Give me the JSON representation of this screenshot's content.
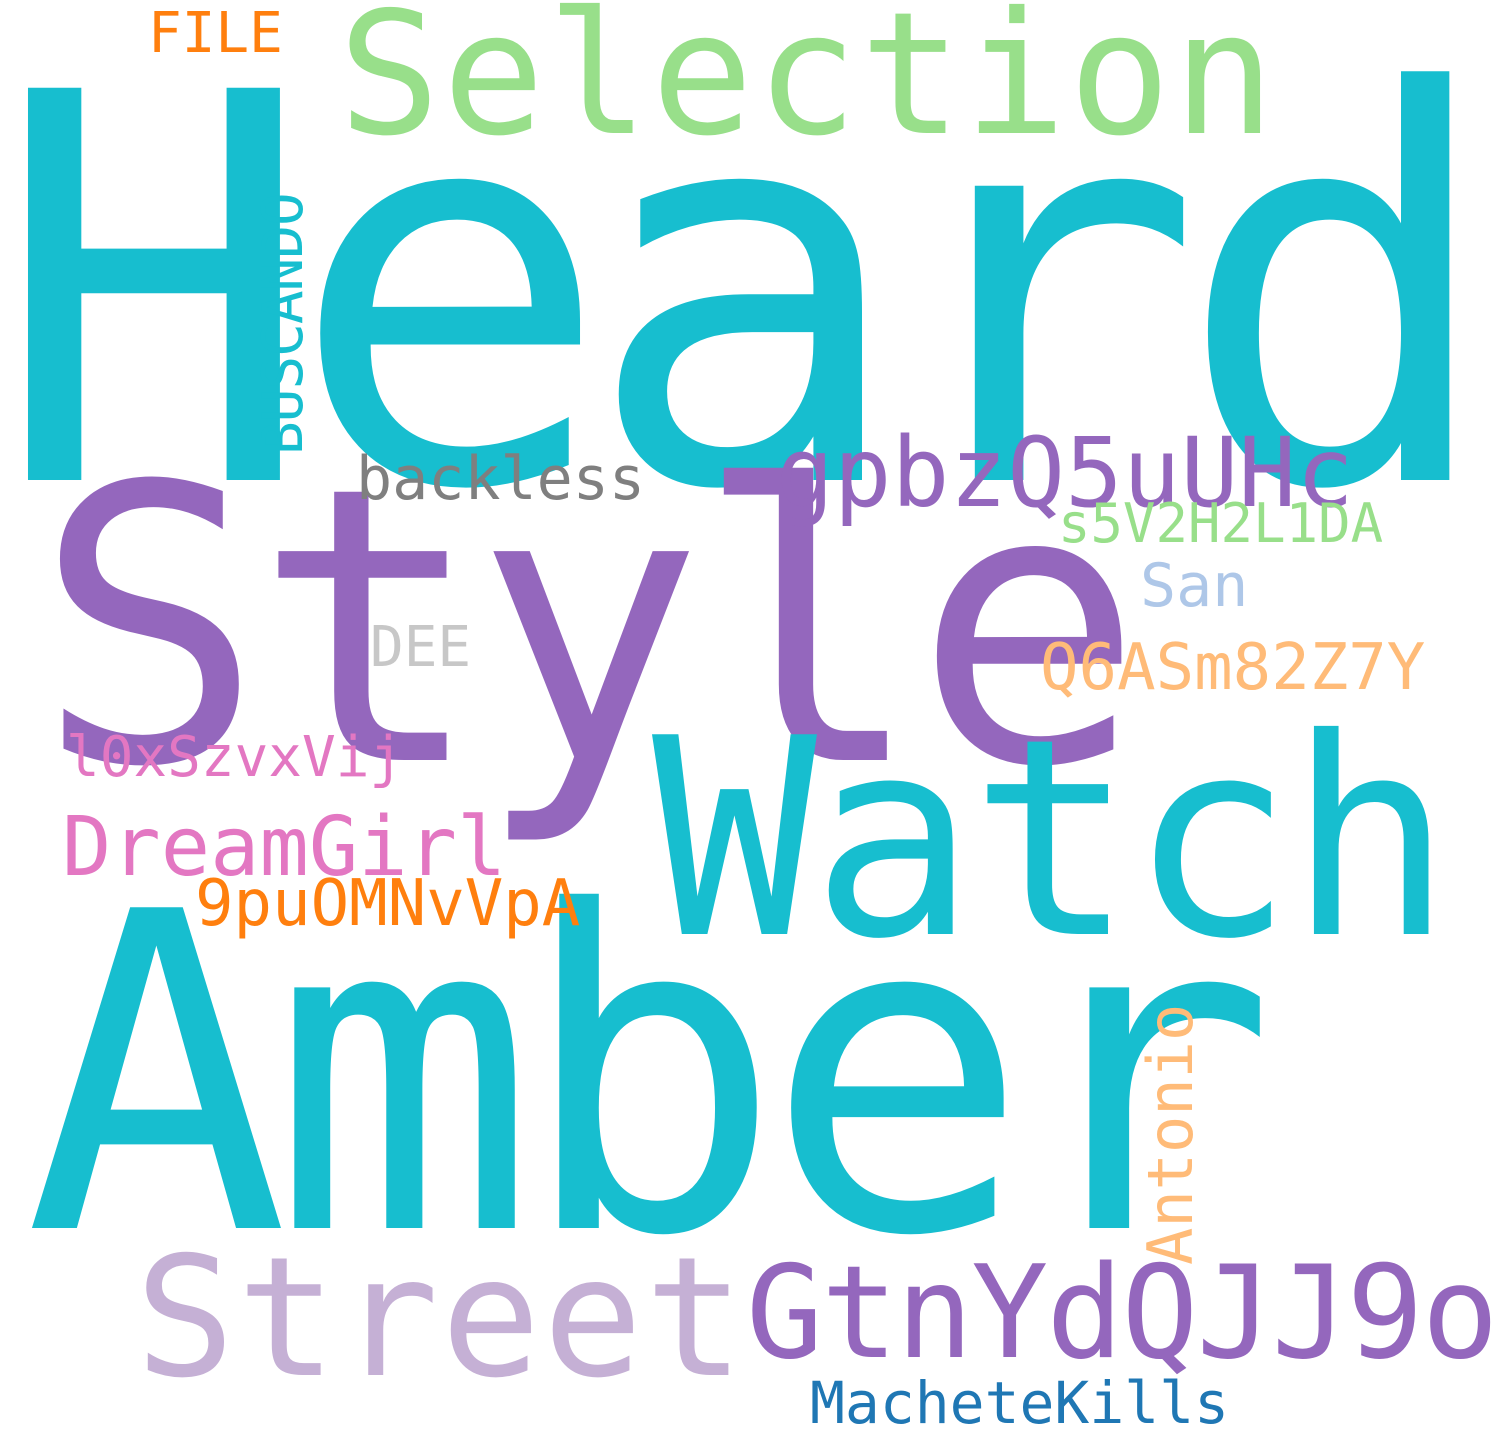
{
  "background_color": "#ffffff",
  "words": {
    "heard": {
      "text": "Heard",
      "color": "#17becf"
    },
    "amber": {
      "text": "Amber",
      "color": "#17becf"
    },
    "style": {
      "text": "Style",
      "color": "#9467bd"
    },
    "watch": {
      "text": "Watch",
      "color": "#17becf"
    },
    "selection": {
      "text": "Selection",
      "color": "#98df8a"
    },
    "street": {
      "text": "Street",
      "color": "#c5b0d5"
    },
    "gtnydqjj9o": {
      "text": "GtnYdQJJ9o",
      "color": "#9467bd"
    },
    "gpbzq5uuhc": {
      "text": "gpbzQ5uUHc",
      "color": "#9467bd"
    },
    "dreamgirl": {
      "text": "DreamGirl",
      "color": "#e377c2"
    },
    "9puomnvvpa": {
      "text": "9puOMNvVpA",
      "color": "#ff7f0e"
    },
    "q6asm82z7y": {
      "text": "Q6ASm82Z7Y",
      "color": "#ffbb78"
    },
    "machetekills": {
      "text": "MacheteKills",
      "color": "#1f77b4"
    },
    "backless": {
      "text": "backless",
      "color": "#7f7f7f"
    },
    "s5v2h2l1da": {
      "text": "s5V2H2L1DA",
      "color": "#98df8a"
    },
    "san": {
      "text": "San",
      "color": "#aec7e8"
    },
    "l0xszvxvij": {
      "text": "l0xSzvxVij",
      "color": "#e377c2"
    },
    "dee": {
      "text": "DEE",
      "color": "#c7c7c7"
    },
    "file": {
      "text": "FILE",
      "color": "#ff7f0e"
    },
    "antonio": {
      "text": "Antonio",
      "color": "#ffbb78"
    },
    "buscando": {
      "text": "BUSCANDO",
      "color": "#17becf"
    }
  }
}
